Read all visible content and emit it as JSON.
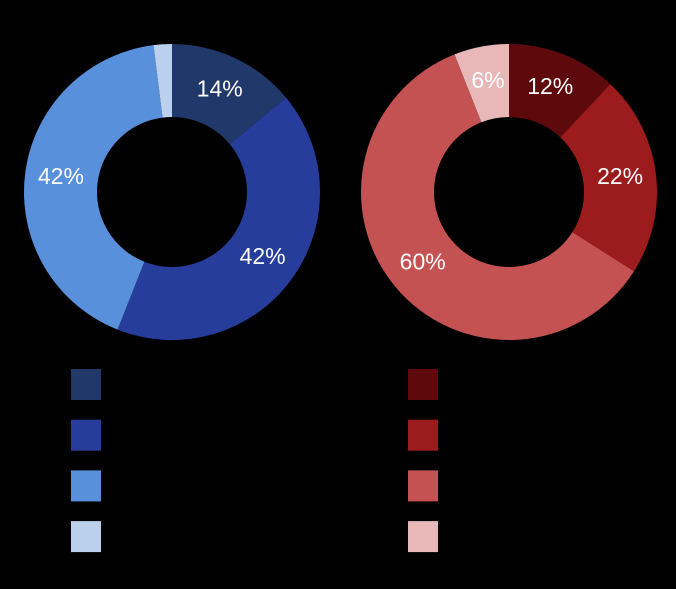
{
  "chart_data": [
    {
      "type": "pie",
      "values": [
        14,
        42,
        42,
        2
      ],
      "value_labels": [
        "14%",
        "42%",
        "42%",
        null
      ],
      "colors": [
        "#21386a",
        "#263d9c",
        "#5890dc",
        "#bad0ec"
      ]
    },
    {
      "type": "pie",
      "values": [
        12,
        22,
        60,
        6
      ],
      "value_labels": [
        "12%",
        "22%",
        "60%",
        "6%"
      ],
      "colors": [
        "#5e0a0c",
        "#9c1b1c",
        "#c55252",
        "#e8b8b8"
      ]
    }
  ]
}
